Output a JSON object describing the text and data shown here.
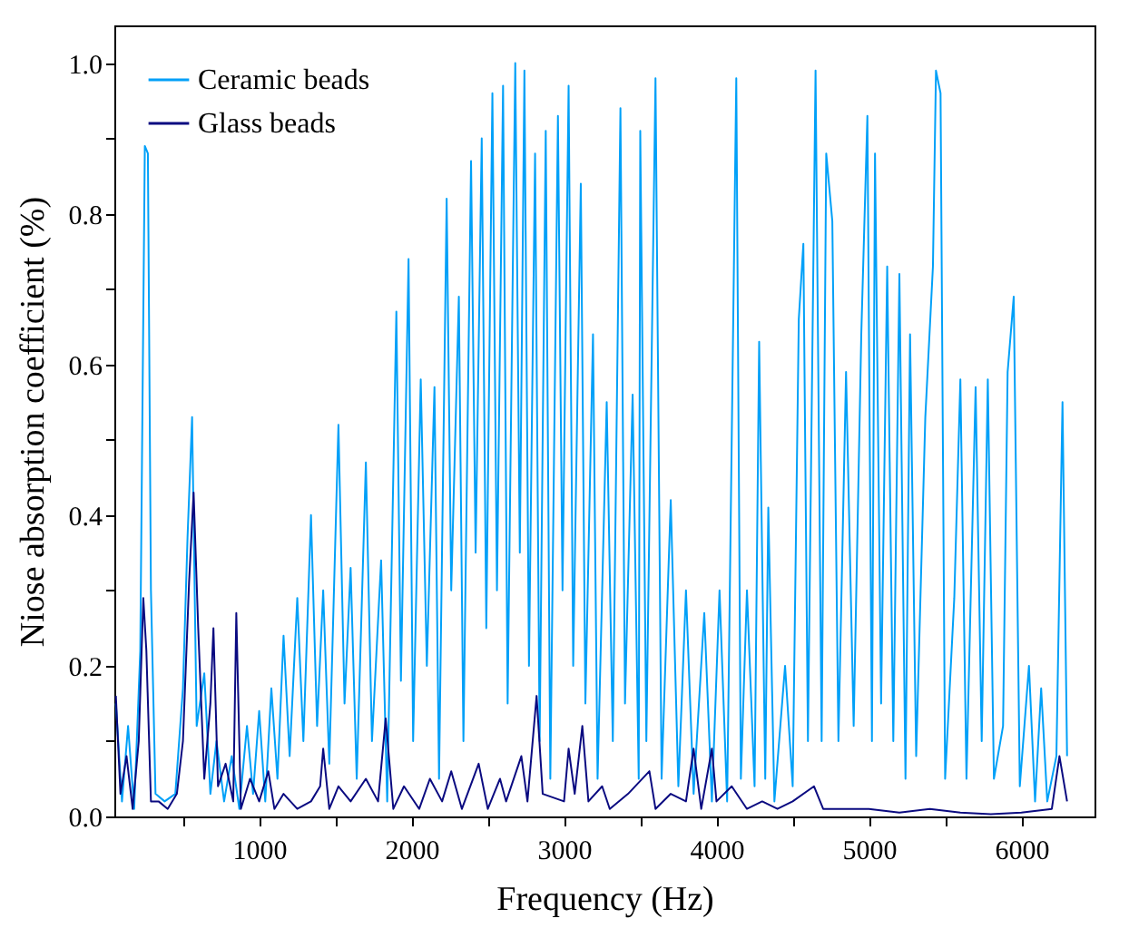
{
  "chart_data": {
    "type": "line",
    "xlabel": "Frequency (Hz)",
    "ylabel": "Niose absorption coefficient (%)",
    "xlim": [
      50,
      6480
    ],
    "ylim": [
      0,
      1.05
    ],
    "xticks": [
      {
        "value": 500,
        "label": null
      },
      1000,
      {
        "value": 1500,
        "label": null
      },
      2000,
      {
        "value": 2500,
        "label": null
      },
      3000,
      {
        "value": 3500,
        "label": null
      },
      4000,
      {
        "value": 4500,
        "label": null
      },
      5000,
      {
        "value": 5500,
        "label": null
      },
      6000
    ],
    "yticks": [
      {
        "value": 0,
        "label": "0.0"
      },
      {
        "value": 0.1,
        "label": null
      },
      0.2,
      {
        "value": 0.3,
        "label": null
      },
      0.4,
      {
        "value": 0.5,
        "label": null
      },
      0.6,
      {
        "value": 0.7,
        "label": null
      },
      0.8,
      {
        "value": 0.9,
        "label": null
      },
      {
        "value": 1,
        "label": "1.0"
      }
    ],
    "grid": false,
    "legend": "top left",
    "marker": "none",
    "line_style": "solid",
    "series": [
      {
        "name": "Ceramic beads",
        "color": "#00a0f8",
        "x": [
          60,
          100,
          140,
          180,
          220,
          250,
          270,
          290,
          320,
          380,
          450,
          500,
          530,
          560,
          590,
          640,
          680,
          720,
          770,
          820,
          870,
          920,
          960,
          1000,
          1040,
          1080,
          1120,
          1160,
          1200,
          1250,
          1290,
          1340,
          1380,
          1420,
          1460,
          1520,
          1560,
          1600,
          1640,
          1700,
          1740,
          1800,
          1840,
          1900,
          1930,
          1980,
          2010,
          2060,
          2100,
          2150,
          2180,
          2230,
          2260,
          2310,
          2340,
          2390,
          2420,
          2460,
          2490,
          2530,
          2560,
          2600,
          2630,
          2680,
          2710,
          2740,
          2770,
          2810,
          2840,
          2880,
          2910,
          2960,
          2990,
          3030,
          3060,
          3110,
          3140,
          3190,
          3220,
          3280,
          3320,
          3370,
          3400,
          3450,
          3490,
          3500,
          3540,
          3600,
          3640,
          3700,
          3750,
          3800,
          3850,
          3920,
          3970,
          4020,
          4070,
          4130,
          4160,
          4200,
          4250,
          4280,
          4320,
          4340,
          4380,
          4450,
          4500,
          4540,
          4570,
          4600,
          4650,
          4690,
          4720,
          4760,
          4800,
          4850,
          4900,
          4950,
          4990,
          5020,
          5040,
          5080,
          5120,
          5160,
          5200,
          5240,
          5270,
          5310,
          5370,
          5420,
          5440,
          5470,
          5500,
          5560,
          5600,
          5640,
          5700,
          5740,
          5780,
          5820,
          5880,
          5910,
          5950,
          5990,
          6050,
          6090,
          6130,
          6170,
          6230,
          6270,
          6300
        ],
        "values": [
          0.15,
          0.02,
          0.12,
          0.01,
          0.22,
          0.89,
          0.88,
          0.3,
          0.03,
          0.02,
          0.03,
          0.17,
          0.37,
          0.53,
          0.12,
          0.19,
          0.03,
          0.1,
          0.02,
          0.08,
          0.01,
          0.12,
          0.03,
          0.14,
          0.02,
          0.17,
          0.05,
          0.24,
          0.08,
          0.29,
          0.1,
          0.4,
          0.12,
          0.3,
          0.07,
          0.52,
          0.15,
          0.33,
          0.05,
          0.47,
          0.1,
          0.34,
          0.02,
          0.67,
          0.18,
          0.74,
          0.1,
          0.58,
          0.2,
          0.57,
          0.05,
          0.82,
          0.3,
          0.69,
          0.1,
          0.87,
          0.35,
          0.9,
          0.25,
          0.96,
          0.3,
          0.97,
          0.15,
          1.0,
          0.35,
          0.99,
          0.2,
          0.88,
          0.1,
          0.91,
          0.05,
          0.93,
          0.3,
          0.97,
          0.2,
          0.84,
          0.15,
          0.64,
          0.05,
          0.55,
          0.1,
          0.94,
          0.15,
          0.56,
          0.05,
          0.91,
          0.1,
          0.98,
          0.05,
          0.42,
          0.04,
          0.3,
          0.03,
          0.27,
          0.02,
          0.3,
          0.02,
          0.98,
          0.05,
          0.3,
          0.04,
          0.63,
          0.05,
          0.41,
          0.02,
          0.2,
          0.04,
          0.66,
          0.76,
          0.1,
          0.99,
          0.1,
          0.88,
          0.79,
          0.1,
          0.59,
          0.12,
          0.64,
          0.93,
          0.1,
          0.88,
          0.15,
          0.73,
          0.1,
          0.72,
          0.05,
          0.64,
          0.08,
          0.53,
          0.73,
          0.99,
          0.96,
          0.05,
          0.29,
          0.58,
          0.05,
          0.57,
          0.1,
          0.58,
          0.05,
          0.12,
          0.59,
          0.69,
          0.04,
          0.2,
          0.02,
          0.17,
          0.02,
          0.08,
          0.55,
          0.08
        ]
      },
      {
        "name": "Glass beads",
        "color": "#0a0a80",
        "x": [
          60,
          90,
          130,
          170,
          210,
          240,
          260,
          290,
          340,
          400,
          460,
          500,
          540,
          570,
          600,
          640,
          680,
          700,
          730,
          780,
          830,
          850,
          880,
          940,
          1000,
          1060,
          1100,
          1160,
          1250,
          1340,
          1400,
          1420,
          1460,
          1520,
          1600,
          1700,
          1780,
          1830,
          1880,
          1950,
          2050,
          2120,
          2200,
          2260,
          2330,
          2440,
          2500,
          2580,
          2620,
          2720,
          2760,
          2820,
          2860,
          3000,
          3030,
          3070,
          3120,
          3160,
          3250,
          3300,
          3420,
          3560,
          3600,
          3700,
          3800,
          3850,
          3900,
          3970,
          4000,
          4100,
          4200,
          4300,
          4400,
          4500,
          4640,
          4700,
          4800,
          5000,
          5200,
          5400,
          5600,
          5800,
          6000,
          6200,
          6250,
          6300
        ],
        "values": [
          0.16,
          0.03,
          0.08,
          0.01,
          0.1,
          0.29,
          0.22,
          0.02,
          0.02,
          0.01,
          0.03,
          0.1,
          0.31,
          0.43,
          0.25,
          0.05,
          0.15,
          0.25,
          0.04,
          0.07,
          0.02,
          0.27,
          0.01,
          0.05,
          0.02,
          0.06,
          0.01,
          0.03,
          0.01,
          0.02,
          0.04,
          0.09,
          0.01,
          0.04,
          0.02,
          0.05,
          0.02,
          0.13,
          0.01,
          0.04,
          0.01,
          0.05,
          0.02,
          0.06,
          0.01,
          0.07,
          0.01,
          0.05,
          0.02,
          0.08,
          0.02,
          0.16,
          0.03,
          0.02,
          0.09,
          0.03,
          0.12,
          0.02,
          0.04,
          0.01,
          0.03,
          0.06,
          0.01,
          0.03,
          0.02,
          0.09,
          0.01,
          0.09,
          0.02,
          0.04,
          0.01,
          0.02,
          0.01,
          0.02,
          0.04,
          0.01,
          0.01,
          0.01,
          0.005,
          0.01,
          0.005,
          0.003,
          0.005,
          0.01,
          0.08,
          0.02
        ]
      }
    ]
  }
}
